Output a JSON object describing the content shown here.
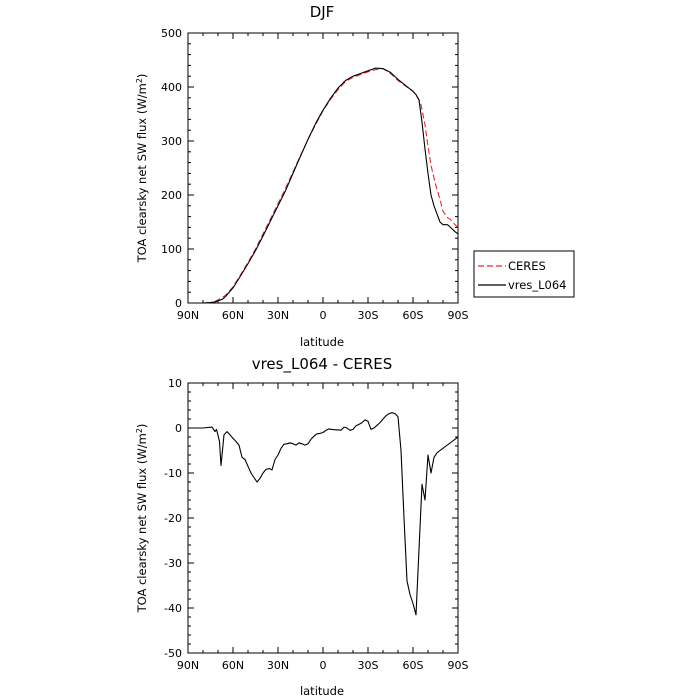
{
  "chart_data": [
    {
      "type": "line",
      "title": "DJF",
      "xlabel": "latitude",
      "ylabel": "TOA clearsky net SW flux (W/m",
      "ylabel_superscript": "2",
      "ylabel_tail": ")",
      "x_tick_labels": [
        "90N",
        "60N",
        "30N",
        "0",
        "30S",
        "60S",
        "90S"
      ],
      "x_ticks": [
        -90,
        -60,
        -30,
        0,
        30,
        60,
        90
      ],
      "xlim": [
        -90,
        90
      ],
      "ylim": [
        0,
        500
      ],
      "y_ticks": [
        0,
        100,
        200,
        300,
        400,
        500
      ],
      "legend_placement": "right, outside plot",
      "series": [
        {
          "name": "CERES",
          "color": "#e8282b",
          "dash": true,
          "x": [
            -90,
            -80,
            -75,
            -72,
            -70,
            -65,
            -60,
            -55,
            -50,
            -45,
            -40,
            -35,
            -30,
            -25,
            -20,
            -15,
            -10,
            -5,
            0,
            5,
            10,
            15,
            20,
            25,
            30,
            35,
            40,
            45,
            50,
            55,
            60,
            62,
            65,
            68,
            70,
            72,
            75,
            78,
            80,
            83,
            85,
            88,
            90
          ],
          "y": [
            0,
            0,
            1,
            3,
            6,
            14,
            30,
            52,
            75,
            100,
            128,
            156,
            184,
            212,
            243,
            273,
            303,
            330,
            356,
            377,
            395,
            410,
            418,
            423,
            428,
            432,
            434,
            425,
            412,
            402,
            392,
            385,
            372,
            330,
            290,
            255,
            220,
            192,
            170,
            158,
            155,
            145,
            140
          ]
        },
        {
          "name": "vres_L064",
          "color": "#000000",
          "dash": false,
          "x": [
            -90,
            -80,
            -75,
            -72,
            -70,
            -67,
            -65,
            -60,
            -55,
            -50,
            -45,
            -40,
            -35,
            -30,
            -25,
            -20,
            -15,
            -10,
            -5,
            0,
            5,
            10,
            15,
            20,
            25,
            30,
            35,
            40,
            45,
            50,
            55,
            60,
            62,
            64,
            66,
            68,
            70,
            72,
            74,
            76,
            78,
            80,
            83,
            85,
            88,
            90
          ],
          "y": [
            0,
            0,
            1,
            2,
            4,
            7,
            12,
            28,
            50,
            73,
            97,
            124,
            152,
            180,
            208,
            240,
            272,
            303,
            332,
            357,
            379,
            398,
            412,
            420,
            425,
            430,
            435,
            434,
            427,
            414,
            403,
            392,
            386,
            376,
            335,
            285,
            240,
            200,
            180,
            165,
            150,
            145,
            145,
            140,
            132,
            128
          ]
        }
      ]
    },
    {
      "type": "line",
      "title": "vres_L064 - CERES",
      "xlabel": "latitude",
      "ylabel": "TOA clearsky net SW flux (W/m",
      "ylabel_superscript": "2",
      "ylabel_tail": ")",
      "x_tick_labels": [
        "90N",
        "60N",
        "30N",
        "0",
        "30S",
        "60S",
        "90S"
      ],
      "x_ticks": [
        -90,
        -60,
        -30,
        0,
        30,
        60,
        90
      ],
      "xlim": [
        -90,
        90
      ],
      "ylim": [
        -50,
        10
      ],
      "y_ticks": [
        -50,
        -40,
        -30,
        -20,
        -10,
        0,
        10
      ],
      "series": [
        {
          "name": "vres_L064 - CERES",
          "color": "#000000",
          "x": [
            -90,
            -80,
            -74,
            -72,
            -71,
            -69,
            -68,
            -66,
            -64,
            -62,
            -60,
            -58,
            -56,
            -54,
            -52,
            -50,
            -48,
            -46,
            -44,
            -42,
            -40,
            -38,
            -36,
            -34,
            -32,
            -30,
            -28,
            -26,
            -24,
            -22,
            -20,
            -18,
            -16,
            -14,
            -12,
            -10,
            -8,
            -6,
            -4,
            -2,
            0,
            2,
            4,
            6,
            8,
            10,
            12,
            14,
            16,
            18,
            20,
            22,
            24,
            26,
            28,
            30,
            32,
            34,
            36,
            38,
            40,
            42,
            44,
            46,
            48,
            50,
            52,
            54,
            56,
            58,
            60,
            62,
            64,
            66,
            68,
            70,
            72,
            74,
            76,
            78,
            80,
            82,
            84,
            86,
            88,
            90
          ],
          "y": [
            0,
            0,
            0.2,
            -0.8,
            -0.3,
            -3,
            -8.3,
            -1.5,
            -0.8,
            -1.5,
            -2.3,
            -3,
            -3.8,
            -6.5,
            -7,
            -8.5,
            -10,
            -11,
            -12,
            -11.2,
            -10,
            -9.2,
            -9,
            -9.3,
            -7,
            -6,
            -4.5,
            -3.6,
            -3.5,
            -3.3,
            -3.5,
            -3.8,
            -3.3,
            -3.5,
            -3.8,
            -3.5,
            -2.5,
            -1.8,
            -1.3,
            -1.2,
            -1,
            -0.5,
            -0.2,
            -0.3,
            -0.4,
            -0.4,
            -0.5,
            0.2,
            0,
            -0.5,
            -0.3,
            0.5,
            0.8,
            1.2,
            1.8,
            1.5,
            -0.3,
            0,
            0.6,
            1.2,
            2,
            2.7,
            3.2,
            3.4,
            3.2,
            2.5,
            -5,
            -20,
            -34,
            -37,
            -39,
            -41.5,
            -27,
            -12.5,
            -16,
            -6,
            -10,
            -6.5,
            -5.5,
            -5,
            -4.5,
            -4,
            -3.5,
            -3,
            -2.5,
            -2
          ]
        }
      ]
    }
  ]
}
